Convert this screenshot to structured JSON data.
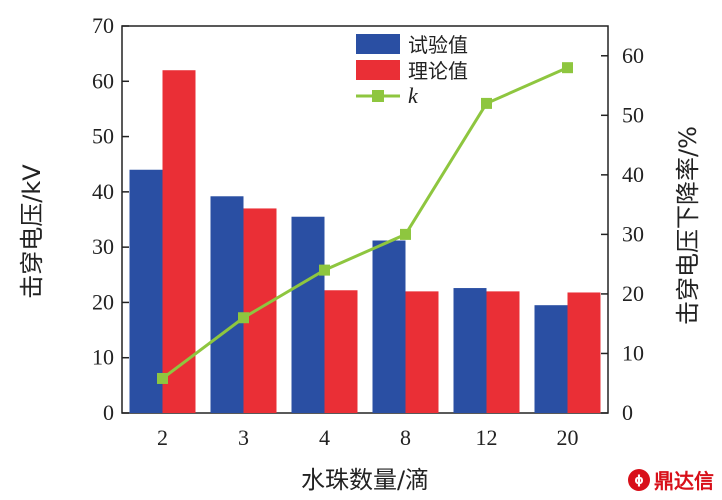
{
  "chart_data": {
    "type": "bar",
    "categories": [
      "2",
      "3",
      "4",
      "8",
      "12",
      "20"
    ],
    "xlabel": "水珠数量/滴",
    "ylabel": "击穿电压/kV",
    "y2label": "击穿电压下降率/%",
    "ylim": [
      0,
      70
    ],
    "yticks": [
      0,
      10,
      20,
      30,
      40,
      50,
      60,
      70
    ],
    "y2lim": [
      0,
      65
    ],
    "y2ticks": [
      0,
      10,
      20,
      30,
      40,
      50,
      60
    ],
    "series": [
      {
        "name": "试验值",
        "type": "bar",
        "axis": "left",
        "color": "#2a4fa3",
        "values": [
          44,
          39.2,
          35.5,
          31.2,
          22.6,
          19.5
        ]
      },
      {
        "name": "理论值",
        "type": "bar",
        "axis": "left",
        "color": "#ea2f36",
        "values": [
          62,
          37,
          22.2,
          22,
          22,
          21.8
        ]
      },
      {
        "name": "k",
        "type": "line",
        "axis": "right",
        "color": "#8ec63f",
        "values": [
          5.8,
          16,
          24,
          30,
          52,
          58
        ]
      }
    ],
    "legend_position": "top-center",
    "grid": false
  },
  "watermark": {
    "logo_text": "ɸ",
    "text": "鼎达信"
  }
}
